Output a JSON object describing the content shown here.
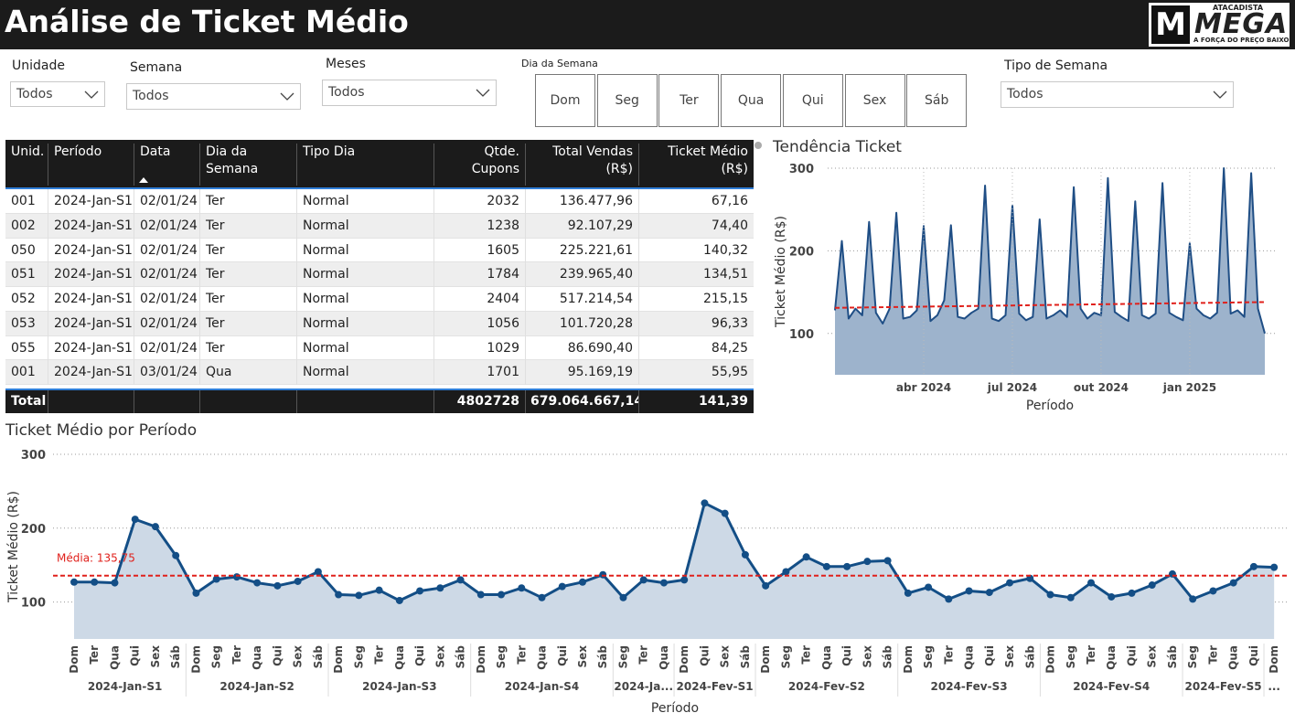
{
  "header": {
    "title": "Análise de Ticket Médio",
    "logo": {
      "mark": "M",
      "top": "ATACADISTA",
      "name": "MEGA",
      "slogan": "A FORÇA DO PREÇO BAIXO"
    }
  },
  "filters": [
    {
      "label": "Unidade",
      "value": "Todos"
    },
    {
      "label": "Semana",
      "value": "Todos"
    },
    {
      "label": "Meses",
      "value": "Todos"
    },
    {
      "label": "Tipo de Semana",
      "value": "Todos"
    }
  ],
  "weekday_filter": {
    "label": "Dia da Semana",
    "options": [
      "Dom",
      "Seg",
      "Ter",
      "Qua",
      "Qui",
      "Sex",
      "Sáb"
    ]
  },
  "table": {
    "columns": [
      "Unid.",
      "Período",
      "Data",
      "Dia da Semana",
      "Tipo Dia",
      "Qtde. Cupons",
      "Total Vendas (R$)",
      "Ticket Médio (R$)"
    ],
    "rows": [
      [
        "001",
        "2024-Jan-S1",
        "02/01/24",
        "Ter",
        "Normal",
        "2032",
        "136.477,96",
        "67,16"
      ],
      [
        "002",
        "2024-Jan-S1",
        "02/01/24",
        "Ter",
        "Normal",
        "1238",
        "92.107,29",
        "74,40"
      ],
      [
        "050",
        "2024-Jan-S1",
        "02/01/24",
        "Ter",
        "Normal",
        "1605",
        "225.221,61",
        "140,32"
      ],
      [
        "051",
        "2024-Jan-S1",
        "02/01/24",
        "Ter",
        "Normal",
        "1784",
        "239.965,40",
        "134,51"
      ],
      [
        "052",
        "2024-Jan-S1",
        "02/01/24",
        "Ter",
        "Normal",
        "2404",
        "517.214,54",
        "215,15"
      ],
      [
        "053",
        "2024-Jan-S1",
        "02/01/24",
        "Ter",
        "Normal",
        "1056",
        "101.720,28",
        "96,33"
      ],
      [
        "055",
        "2024-Jan-S1",
        "02/01/24",
        "Ter",
        "Normal",
        "1029",
        "86.690,40",
        "84,25"
      ],
      [
        "001",
        "2024-Jan-S1",
        "03/01/24",
        "Qua",
        "Normal",
        "1701",
        "95.169,19",
        "55,95"
      ]
    ],
    "total": {
      "label": "Total",
      "values": [
        "4802728",
        "679.064.667,14",
        "141,39"
      ]
    }
  },
  "chart_data": [
    {
      "type": "area",
      "title": "Tendência Ticket",
      "x_label": "Período",
      "y_label": "Ticket Médio (R$)",
      "color": "#1f4e85",
      "fill": "#9db3cc",
      "values": [
        128,
        212,
        118,
        130,
        122,
        235,
        125,
        112,
        130,
        246,
        118,
        120,
        128,
        230,
        115,
        122,
        140,
        231,
        120,
        118,
        125,
        130,
        279,
        118,
        115,
        122,
        255,
        124,
        116,
        120,
        238,
        118,
        122,
        128,
        120,
        277,
        130,
        118,
        125,
        122,
        288,
        126,
        120,
        115,
        260,
        122,
        118,
        124,
        282,
        125,
        120,
        116,
        209,
        130,
        122,
        118,
        125,
        300,
        124,
        128,
        120,
        294,
        130,
        100
      ],
      "xlim": [
        0,
        63
      ],
      "xticks": [
        {
          "value": 13,
          "label": "abr 2024"
        },
        {
          "value": 26,
          "label": "jul 2024"
        },
        {
          "value": 39,
          "label": "out 2024"
        },
        {
          "value": 52,
          "label": "jan 2025"
        }
      ],
      "ylim": [
        50,
        300
      ],
      "yticks": [
        100,
        200,
        300
      ],
      "grid": true,
      "trend_line": {
        "start": 131,
        "end": 138,
        "color": "#e0201b"
      }
    },
    {
      "type": "area",
      "title": "Ticket Médio por Período",
      "x_label": "Período",
      "y_label": "Ticket Médio (R$)",
      "color": "#134e86",
      "fill": "#cdd9e6",
      "groups": [
        {
          "label": "2024-Jan-S1",
          "categories": [
            "Dom",
            "Ter",
            "Qua",
            "Qui",
            "Sex",
            "Sáb"
          ]
        },
        {
          "label": "2024-Jan-S2",
          "categories": [
            "Dom",
            "Seg",
            "Ter",
            "Qua",
            "Qui",
            "Sex",
            "Sáb"
          ]
        },
        {
          "label": "2024-Jan-S3",
          "categories": [
            "Dom",
            "Seg",
            "Ter",
            "Qua",
            "Qui",
            "Sex",
            "Sáb"
          ]
        },
        {
          "label": "2024-Jan-S4",
          "categories": [
            "Dom",
            "Seg",
            "Ter",
            "Qua",
            "Qui",
            "Sex",
            "Sáb"
          ]
        },
        {
          "label": "2024-Ja...",
          "categories": [
            "Seg",
            "Ter",
            "Qua"
          ]
        },
        {
          "label": "2024-Fev-S1",
          "categories": [
            "Dom",
            "Qui",
            "Sex",
            "Sáb"
          ]
        },
        {
          "label": "2024-Fev-S2",
          "categories": [
            "Dom",
            "Seg",
            "Ter",
            "Qua",
            "Qui",
            "Sex",
            "Sáb"
          ]
        },
        {
          "label": "2024-Fev-S3",
          "categories": [
            "Dom",
            "Seg",
            "Ter",
            "Qua",
            "Qui",
            "Sex",
            "Sáb"
          ]
        },
        {
          "label": "2024-Fev-S4",
          "categories": [
            "Dom",
            "Seg",
            "Ter",
            "Qua",
            "Qui",
            "Sex",
            "Sáb"
          ]
        },
        {
          "label": "2024-Fev-S5",
          "categories": [
            "Seg",
            "Ter",
            "Qua",
            "Qui"
          ]
        },
        {
          "label": "...",
          "categories": [
            "Dom"
          ]
        }
      ],
      "values": [
        127,
        127,
        126,
        212,
        202,
        163,
        112,
        131,
        134,
        126,
        122,
        128,
        141,
        110,
        109,
        116,
        102,
        115,
        119,
        130,
        110,
        110,
        119,
        106,
        121,
        127,
        137,
        106,
        130,
        126,
        130,
        234,
        220,
        164,
        122,
        141,
        161,
        148,
        148,
        155,
        156,
        112,
        120,
        104,
        115,
        113,
        126,
        132,
        110,
        106,
        126,
        107,
        112,
        123,
        138,
        104,
        115,
        126,
        148,
        147
      ],
      "ylim": [
        50,
        300
      ],
      "yticks": [
        100,
        200,
        300
      ],
      "grid": true,
      "mean": {
        "value": 135.75,
        "label": "Média: 135,75",
        "color": "#e0201b"
      }
    }
  ]
}
